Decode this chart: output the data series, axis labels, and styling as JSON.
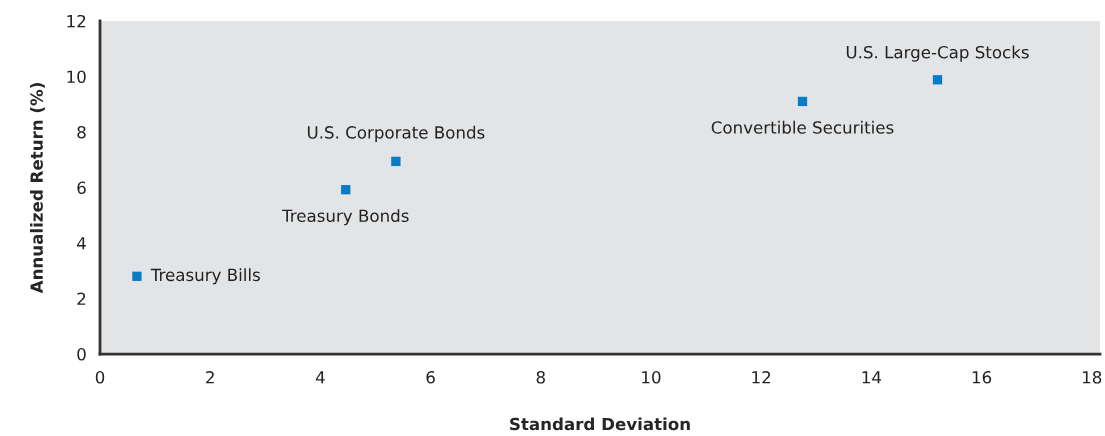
{
  "chart_data": {
    "type": "scatter",
    "xlabel": "Standard Deviation",
    "ylabel": "Annualized Return (%)",
    "x": [
      0.67,
      4.46,
      5.37,
      12.75,
      15.2
    ],
    "series": [
      {
        "color": "#0a7bc5",
        "values": [
          2.8,
          5.92,
          6.94,
          9.1,
          9.88
        ]
      }
    ],
    "marker": "square",
    "xlim": [
      0,
      18.15
    ],
    "xticks": [
      0,
      2,
      4,
      6,
      8,
      10,
      12,
      14,
      16,
      18
    ],
    "ylim": [
      0,
      12
    ],
    "yticks": [
      0,
      2,
      4,
      6,
      8,
      10,
      12
    ],
    "annotations": [
      {
        "text": "Treasury Bills",
        "x": 0.67,
        "y": 2.8
      },
      {
        "text": "Treasury Bonds",
        "x": 4.46,
        "y": 5.92
      },
      {
        "text": "U.S. Corporate Bonds",
        "x": 5.37,
        "y": 6.94
      },
      {
        "text": "Convertible Securities",
        "x": 12.75,
        "y": 9.1
      },
      {
        "text": "U.S. Large-Cap Stocks",
        "x": 15.2,
        "y": 9.88
      }
    ]
  }
}
